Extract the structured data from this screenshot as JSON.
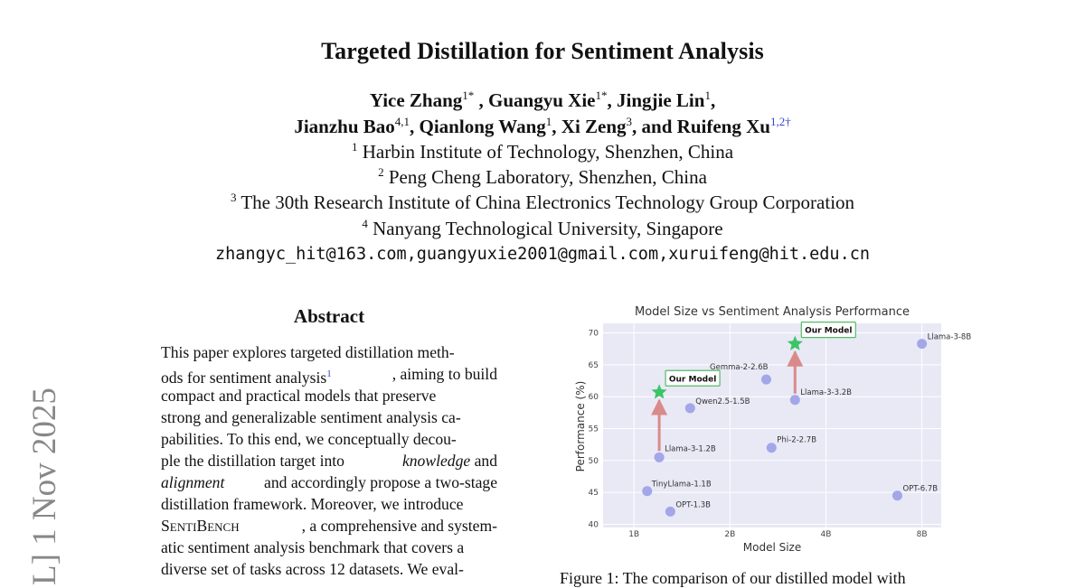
{
  "paper": {
    "title": "Targeted Distillation for Sentiment Analysis",
    "authors_line1": [
      {
        "name": "Yice Zhang",
        "sup": "1*"
      },
      {
        "name": "Guangyu Xie",
        "sup": "1*"
      },
      {
        "name": "Jingjie Lin",
        "sup": "1"
      }
    ],
    "authors_line2": [
      {
        "name": "Jianzhu Bao",
        "sup": "4,1"
      },
      {
        "name": "Qianlong Wang",
        "sup": "1"
      },
      {
        "name": "Xi Zeng",
        "sup": "3"
      },
      {
        "name": "Ruifeng Xu",
        "sup": "1,2†"
      }
    ],
    "conjunction": "and",
    "affiliations": [
      {
        "sup": "1",
        "text": "Harbin Institute of Technology, Shenzhen, China"
      },
      {
        "sup": "2",
        "text": "Peng Cheng Laboratory, Shenzhen, China"
      },
      {
        "sup": "3",
        "text": "The 30th Research Institute of China Electronics Technology Group Corporation"
      },
      {
        "sup": "4",
        "text": "Nanyang Technological University, Singapore"
      }
    ],
    "emails": "zhangyc_hit@163.com,guangyuxie2001@gmail.com,xuruifeng@hit.edu.cn",
    "arxiv_stamp": "L] 1 Nov 2025"
  },
  "abstract": {
    "heading": "Abstract",
    "lines": [
      "This paper explores targeted distillation meth-",
      "ods for sentiment analysis",
      "compact and practical models that preserve",
      "strong and generalizable sentiment analysis ca-",
      "pabilities. To this end, we conceptually decou-",
      "ple the distillation target into",
      "alignment",
      "distillation framework. Moreover, we introduce",
      "SentiBench",
      "atic sentiment analysis benchmark that covers a",
      "diverse set of tasks across 12 datasets. We eval-"
    ],
    "footnote_mark": "1",
    "line2_rest": ", aiming to build",
    "knowledge": "knowledge",
    "and": "and",
    "line7_rest": " and accordingly propose a two-stage",
    "line9_rest": ", a comprehensive and system-"
  },
  "figure": {
    "caption": "Figure 1: The comparison of our distilled model with"
  },
  "chart_data": {
    "type": "scatter",
    "title": "Model Size vs Sentiment Analysis Performance",
    "xlabel": "Model Size",
    "ylabel": "Performance (%)",
    "xlim": [
      0.8,
      9.2
    ],
    "ylim": [
      39.5,
      71.5
    ],
    "x_ticks": [
      1,
      2,
      4,
      8
    ],
    "x_tick_labels": [
      "1B",
      "2B",
      "4B",
      "8B"
    ],
    "y_ticks": [
      40,
      45,
      50,
      55,
      60,
      65,
      70
    ],
    "points": [
      {
        "label": "TinyLlama-1.1B",
        "x": 1.1,
        "y": 45.2
      },
      {
        "label": "OPT-1.3B",
        "x": 1.3,
        "y": 42.0
      },
      {
        "label": "Llama-3-1.2B",
        "x": 1.2,
        "y": 50.5
      },
      {
        "label": "Qwen2.5-1.5B",
        "x": 1.5,
        "y": 58.2
      },
      {
        "label": "Gemma-2-2.6B",
        "x": 2.6,
        "y": 62.7
      },
      {
        "label": "Phi-2-2.7B",
        "x": 2.7,
        "y": 52.0
      },
      {
        "label": "Llama-3-3.2B",
        "x": 3.2,
        "y": 59.5
      },
      {
        "label": "OPT-6.7B",
        "x": 6.7,
        "y": 44.5
      },
      {
        "label": "Llama-3-8B",
        "x": 8.0,
        "y": 68.3
      }
    ],
    "ours": [
      {
        "label": "Our Model",
        "x": 1.2,
        "y": 60.7,
        "from_y": 50.5
      },
      {
        "label": "Our Model",
        "x": 3.2,
        "y": 68.3,
        "from_y": 59.5
      }
    ],
    "colors": {
      "point": "#a3a6e8",
      "star": "#3cc466",
      "arrow": "#d98a8a",
      "box_border": "#55bb66",
      "plot_bg": "#e8e9f5"
    }
  }
}
